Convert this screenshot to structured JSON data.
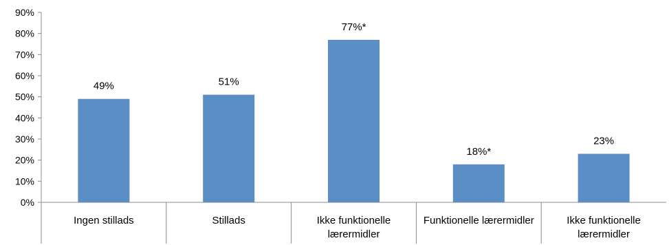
{
  "chart_data": {
    "type": "bar",
    "categories": [
      [
        "Ingen stillads"
      ],
      [
        "Stillads"
      ],
      [
        "Ikke funktionelle",
        "lærermidler"
      ],
      [
        "Funktionelle lærermidler"
      ],
      [
        "Ikke funktionelle",
        "lærermidler"
      ]
    ],
    "values": [
      49,
      51,
      77,
      18,
      23
    ],
    "data_labels": [
      "49%",
      "51%",
      "77%*",
      "18%*",
      "23%"
    ],
    "y_ticks": [
      "0%",
      "10%",
      "20%",
      "30%",
      "40%",
      "50%",
      "60%",
      "70%",
      "80%",
      "90%"
    ],
    "ylim": [
      0,
      90
    ],
    "y_unit": "%",
    "title": "",
    "xlabel": "",
    "ylabel": "",
    "grid": false,
    "legend": "none",
    "bar_color": "#5b8ec4",
    "axis_color": "#8c8c8c"
  }
}
